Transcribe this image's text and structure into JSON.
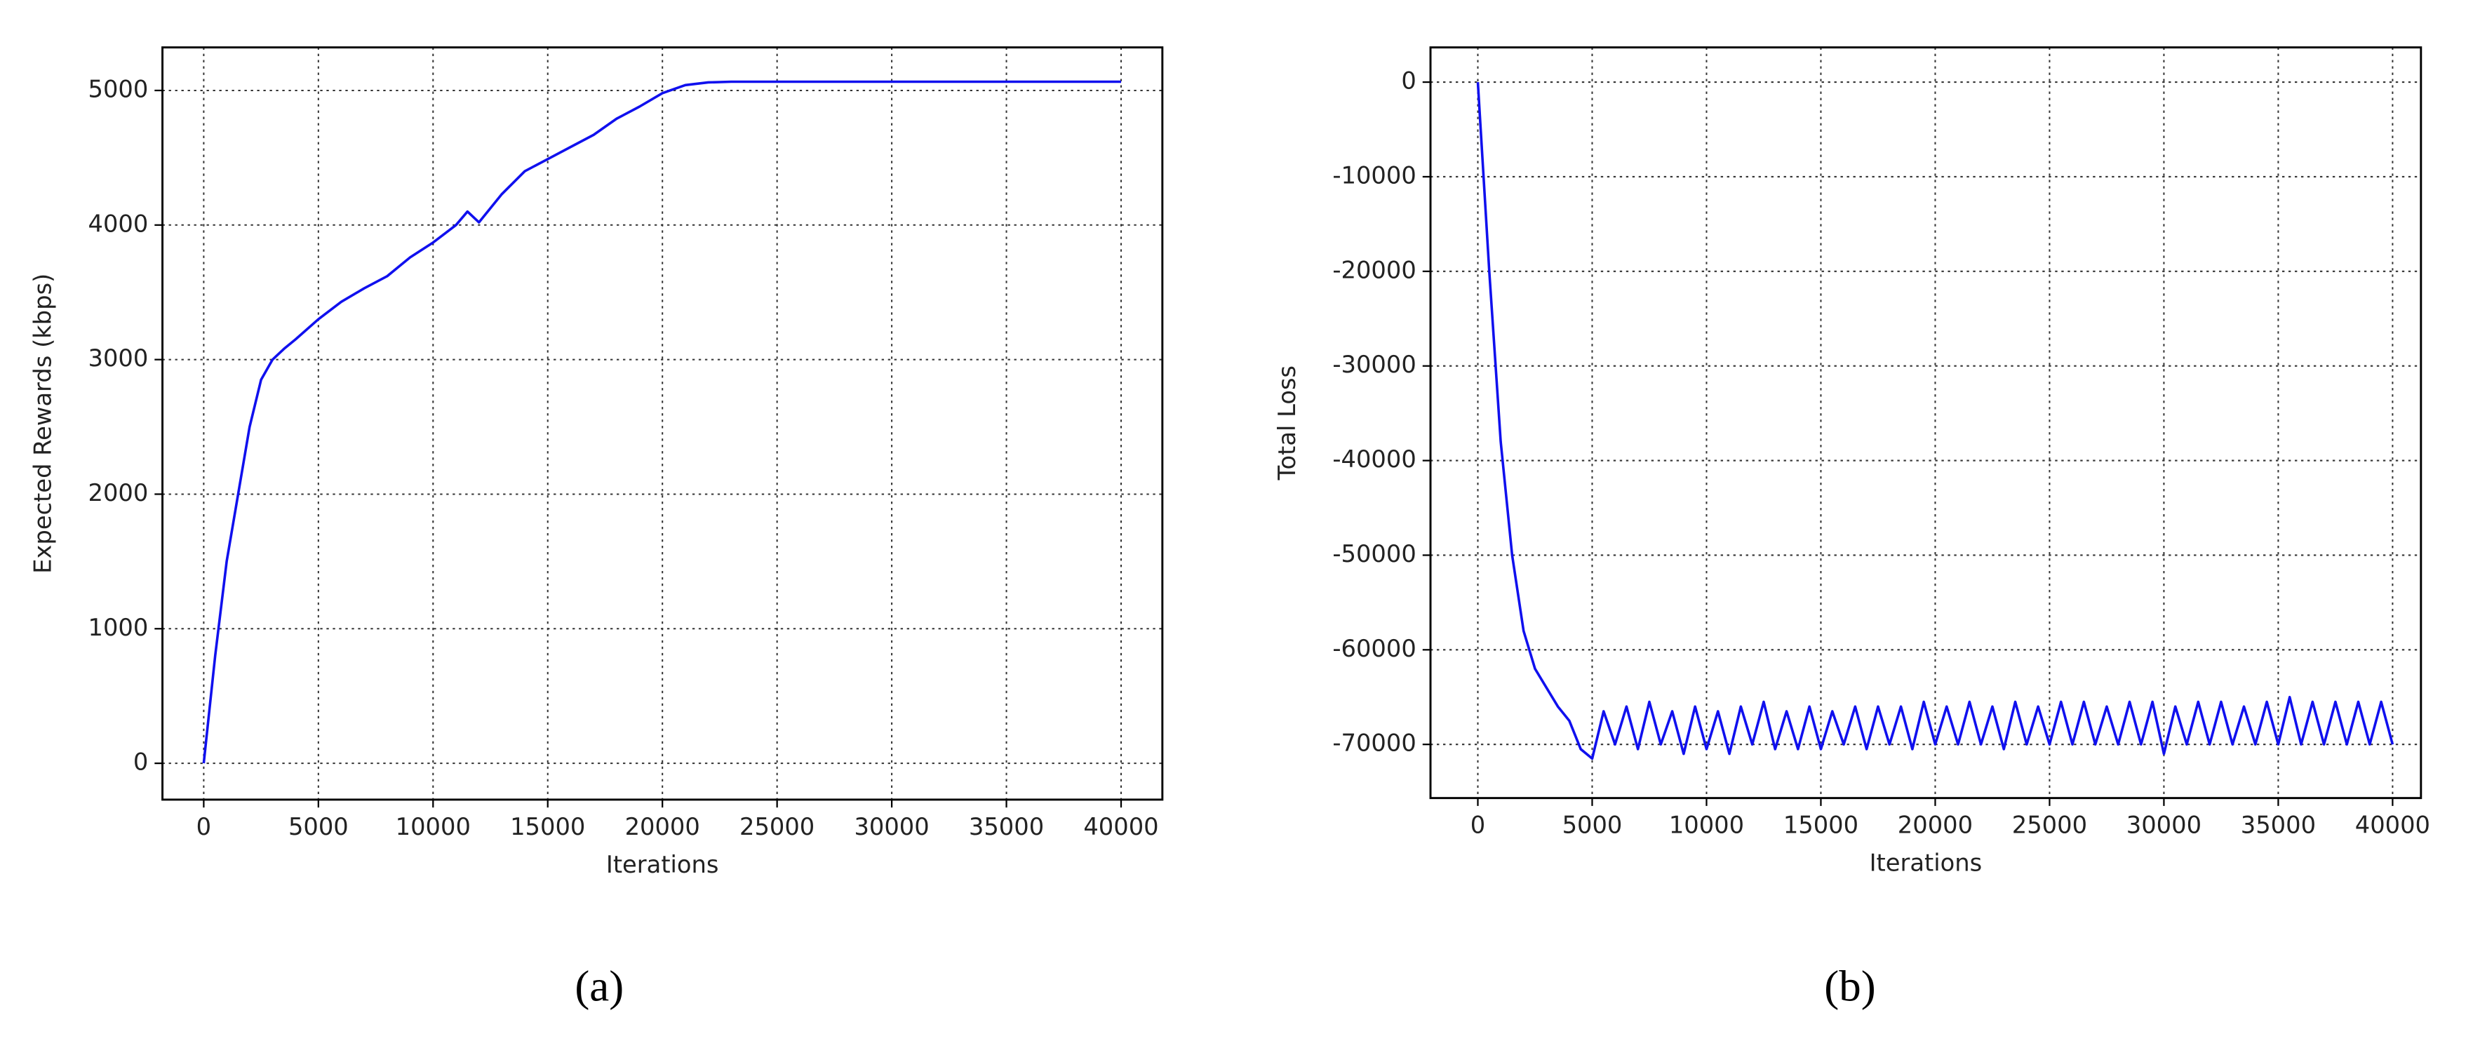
{
  "chart_data": [
    {
      "type": "line",
      "caption": "(a)",
      "xlabel": "Iterations",
      "ylabel": "Expected Rewards (kbps)",
      "color": "#1010ee",
      "grid": true,
      "xlim": [
        -1800,
        41800
      ],
      "ylim": [
        -270,
        5320
      ],
      "xticks": [
        0,
        5000,
        10000,
        15000,
        20000,
        25000,
        30000,
        35000,
        40000
      ],
      "yticks": [
        0,
        1000,
        2000,
        3000,
        4000,
        5000
      ],
      "x": [
        0,
        500,
        1000,
        1500,
        2000,
        2500,
        3000,
        3500,
        4000,
        5000,
        6000,
        7000,
        8000,
        9000,
        10000,
        11000,
        11500,
        12000,
        13000,
        14000,
        15000,
        16000,
        17000,
        18000,
        19000,
        20000,
        21000,
        22000,
        23000,
        25000,
        30000,
        35000,
        40000
      ],
      "values": [
        0,
        800,
        1500,
        2000,
        2500,
        2850,
        3000,
        3080,
        3150,
        3300,
        3430,
        3530,
        3620,
        3760,
        3870,
        4000,
        4100,
        4020,
        4230,
        4400,
        4490,
        4580,
        4670,
        4790,
        4880,
        4980,
        5040,
        5060,
        5065,
        5065,
        5065,
        5065,
        5065
      ]
    },
    {
      "type": "line",
      "caption": "(b)",
      "xlabel": "Iterations",
      "ylabel": "Total Loss",
      "color": "#1010ee",
      "grid": true,
      "xlim": [
        -2070,
        41240
      ],
      "ylim": [
        -75670,
        3670
      ],
      "xticks": [
        0,
        5000,
        10000,
        15000,
        20000,
        25000,
        30000,
        35000,
        40000
      ],
      "yticks": [
        0,
        -10000,
        -20000,
        -30000,
        -40000,
        -50000,
        -60000,
        -70000
      ],
      "x": [
        0,
        500,
        1000,
        1500,
        2000,
        2500,
        3000,
        3500,
        4000,
        4500,
        5000,
        5500,
        6000,
        6500,
        7000,
        7500,
        8000,
        8500,
        9000,
        9500,
        10000,
        10500,
        11000,
        11500,
        12000,
        12500,
        13000,
        13500,
        14000,
        14500,
        15000,
        15500,
        16000,
        16500,
        17000,
        17500,
        18000,
        18500,
        19000,
        19500,
        20000,
        20500,
        21000,
        21500,
        22000,
        22500,
        23000,
        23500,
        24000,
        24500,
        25000,
        25500,
        26000,
        26500,
        27000,
        27500,
        28000,
        28500,
        29000,
        29500,
        30000,
        30500,
        31000,
        31500,
        32000,
        32500,
        33000,
        33500,
        34000,
        34500,
        35000,
        35500,
        36000,
        36500,
        37000,
        37500,
        38000,
        38500,
        39000,
        39500,
        40000
      ],
      "values": [
        0,
        -20000,
        -38000,
        -50000,
        -58000,
        -62000,
        -64000,
        -66000,
        -67500,
        -70500,
        -71500,
        -66500,
        -70000,
        -66000,
        -70500,
        -65500,
        -70000,
        -66500,
        -71000,
        -66000,
        -70500,
        -66500,
        -71000,
        -66000,
        -70000,
        -65500,
        -70500,
        -66500,
        -70500,
        -66000,
        -70500,
        -66500,
        -70000,
        -66000,
        -70500,
        -66000,
        -70000,
        -66000,
        -70500,
        -65500,
        -70000,
        -66000,
        -70000,
        -65500,
        -70000,
        -66000,
        -70500,
        -65500,
        -70000,
        -66000,
        -70000,
        -65500,
        -70000,
        -65500,
        -70000,
        -66000,
        -70000,
        -65500,
        -70000,
        -65500,
        -71000,
        -66000,
        -70000,
        -65500,
        -70000,
        -65500,
        -70000,
        -66000,
        -70000,
        -65500,
        -70000,
        -65000,
        -70000,
        -65500,
        -70000,
        -65500,
        -70000,
        -65500,
        -70000,
        -65500,
        -70000
      ]
    }
  ]
}
